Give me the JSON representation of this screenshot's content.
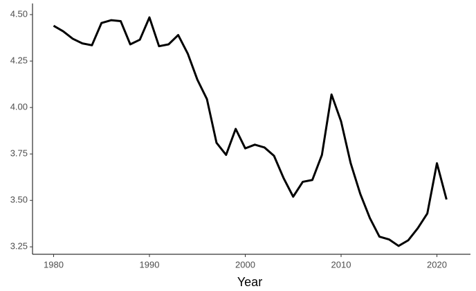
{
  "chart_data": {
    "type": "line",
    "x_label": "Year",
    "x": [
      1980,
      1981,
      1982,
      1983,
      1984,
      1985,
      1986,
      1987,
      1988,
      1989,
      1990,
      1991,
      1992,
      1993,
      1994,
      1995,
      1996,
      1997,
      1998,
      1999,
      2000,
      2001,
      2002,
      2003,
      2004,
      2005,
      2006,
      2007,
      2008,
      2009,
      2010,
      2011,
      2012,
      2013,
      2014,
      2015,
      2016,
      2017,
      2018,
      2019,
      2020,
      2021
    ],
    "values": [
      4.44,
      4.41,
      4.37,
      4.345,
      4.335,
      4.455,
      4.47,
      4.465,
      4.34,
      4.365,
      4.485,
      4.33,
      4.34,
      4.39,
      4.29,
      4.15,
      4.045,
      3.81,
      3.745,
      3.885,
      3.78,
      3.8,
      3.785,
      3.74,
      3.62,
      3.52,
      3.6,
      3.61,
      3.745,
      4.07,
      3.925,
      3.7,
      3.535,
      3.405,
      3.305,
      3.29,
      3.255,
      3.285,
      3.35,
      3.43,
      3.7,
      3.505
    ],
    "color": "#000000",
    "xlim": [
      1977.8,
      2023.5
    ],
    "xticks": [
      1980,
      1990,
      2000,
      2010,
      2020
    ],
    "ylim": [
      3.21,
      4.56
    ],
    "yticks": [
      {
        "value": 3.25,
        "label": "3.25"
      },
      {
        "value": 3.5,
        "label": "3.50"
      },
      {
        "value": 3.75,
        "label": "3.75"
      },
      {
        "value": 4.0,
        "label": "4.00"
      },
      {
        "value": 4.25,
        "label": "4.25"
      },
      {
        "value": 4.5,
        "label": "4.50"
      }
    ]
  }
}
